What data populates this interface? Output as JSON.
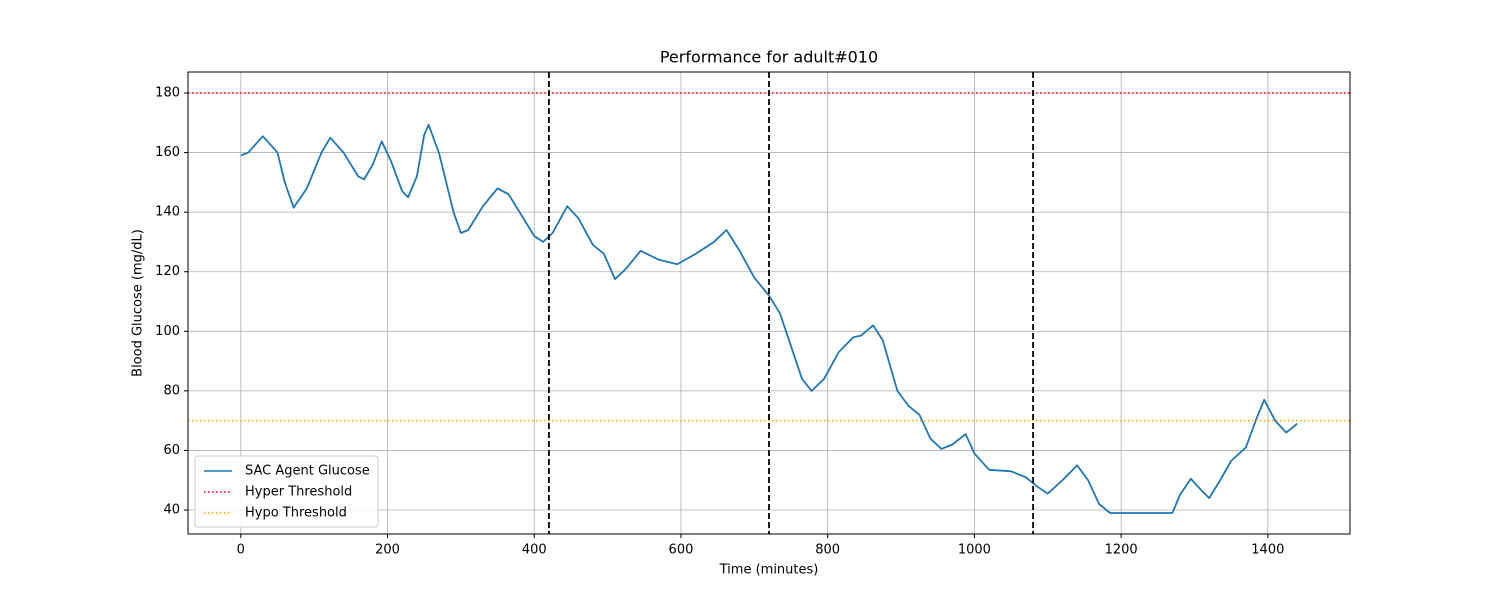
{
  "chart_data": {
    "type": "line",
    "title": "Performance for adult#010",
    "x_label": "Time (minutes)",
    "y_label": "Blood Glucose (mg/dL)",
    "xlim": [
      -72,
      1512
    ],
    "ylim": [
      31.95,
      187.05
    ],
    "xticks": [
      0,
      200,
      400,
      600,
      800,
      1000,
      1200,
      1400
    ],
    "yticks": [
      40,
      60,
      80,
      100,
      120,
      140,
      160,
      180
    ],
    "grid": true,
    "legend": "lower left",
    "series": [
      {
        "name": "SAC Agent Glucose",
        "color": "#1f77b4",
        "x": [
          0,
          10,
          30,
          50,
          60,
          72,
          90,
          110,
          122,
          140,
          160,
          168,
          180,
          192,
          205,
          220,
          228,
          240,
          250,
          256,
          270,
          290,
          300,
          310,
          330,
          350,
          365,
          380,
          400,
          412,
          425,
          445,
          460,
          480,
          495,
          510,
          525,
          545,
          570,
          595,
          620,
          645,
          662,
          680,
          700,
          720,
          735,
          750,
          765,
          778,
          795,
          815,
          835,
          845,
          862,
          875,
          895,
          910,
          925,
          940,
          955,
          970,
          988,
          1000,
          1020,
          1050,
          1070,
          1085,
          1100,
          1120,
          1140,
          1155,
          1170,
          1185,
          1270,
          1280,
          1295,
          1308,
          1320,
          1335,
          1350,
          1370,
          1385,
          1395,
          1410,
          1425,
          1440
        ],
        "values": [
          159,
          160,
          165.5,
          160,
          150,
          141.5,
          148,
          160,
          165,
          160,
          152,
          151,
          156,
          163.8,
          157,
          147,
          145,
          152,
          166,
          169.3,
          160,
          140,
          133,
          134,
          142,
          148,
          146,
          140,
          132,
          130,
          133,
          142,
          138,
          129,
          126,
          117.5,
          121,
          127,
          124,
          122.5,
          126,
          130,
          134,
          127,
          118,
          112,
          106,
          95,
          84,
          80,
          84,
          93,
          98,
          98.5,
          102,
          97,
          80,
          75,
          72,
          64,
          60.5,
          62,
          65.5,
          59,
          53.5,
          53,
          51,
          48,
          45.5,
          50,
          55,
          50,
          42,
          39,
          39,
          45,
          50.5,
          47,
          44,
          50,
          56.5,
          61,
          71,
          77,
          70,
          66,
          69
        ]
      }
    ],
    "thresholds": [
      {
        "name": "Hyper Threshold",
        "value": 180,
        "color": "red"
      },
      {
        "name": "Hypo Threshold",
        "value": 70,
        "color": "orange"
      }
    ],
    "vlines": [
      420,
      720,
      1080
    ]
  }
}
